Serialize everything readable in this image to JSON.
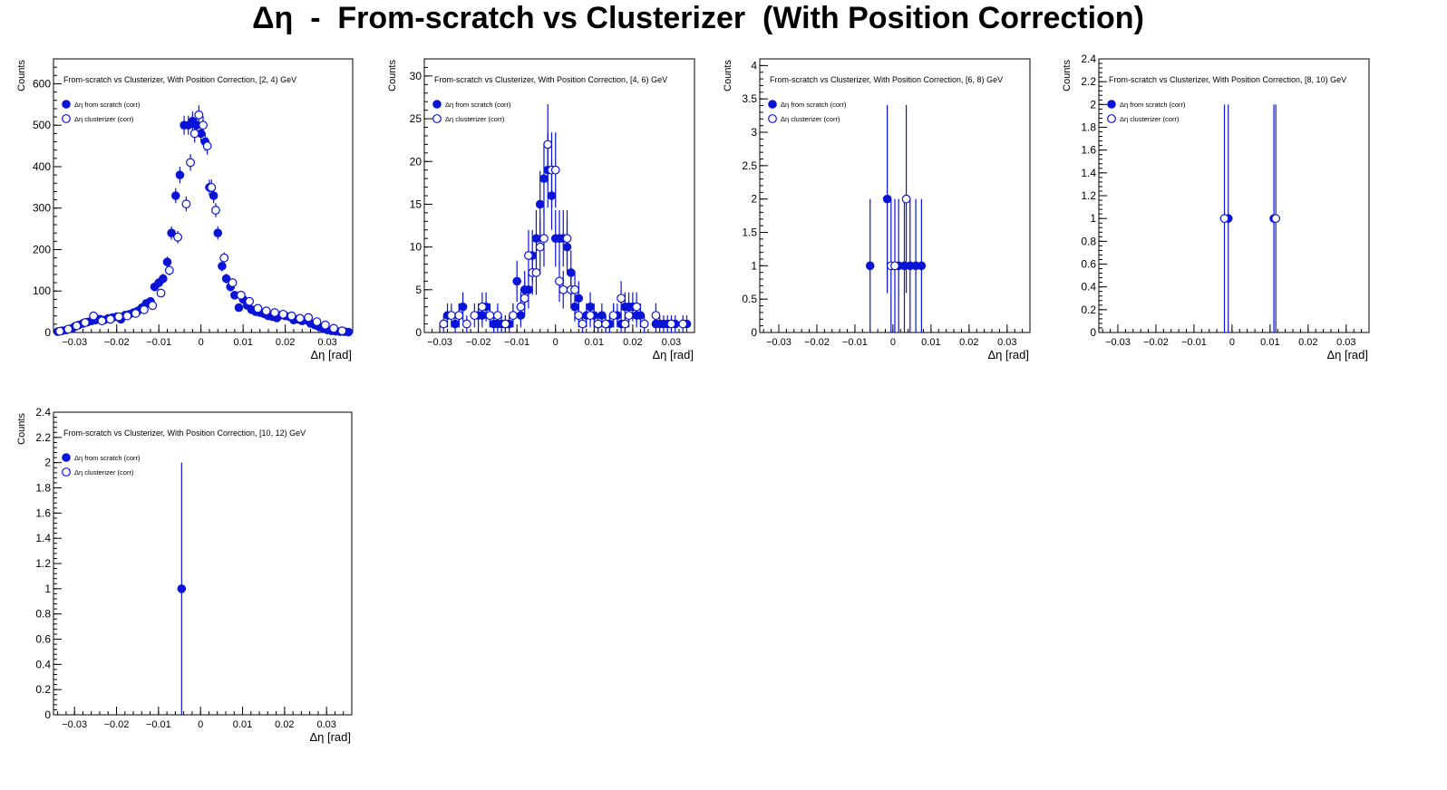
{
  "figure": {
    "title": "Δη  -  From-scratch vs Clusterizer  (With Position Correction)"
  },
  "colors": {
    "marker": "#0a14d6",
    "axis": "#000000",
    "background": "#ffffff"
  },
  "chart_data": [
    {
      "type": "scatter",
      "title": "From-scratch vs Clusterizer, With Position Correction, [2, 4) GeV",
      "xlabel": "Δη  [rad]",
      "ylabel": "Counts",
      "xlim": [
        -0.035,
        0.036
      ],
      "ylim": [
        0,
        660
      ],
      "xticks": [
        -0.03,
        -0.02,
        -0.01,
        0,
        0.01,
        0.02,
        0.03
      ],
      "xtick_labels": [
        "−0.03",
        "−0.02",
        "−0.01",
        "0",
        "0.01",
        "0.02",
        "0.03"
      ],
      "yticks": [
        0,
        100,
        200,
        300,
        400,
        500,
        600
      ],
      "ytick_labels": [
        "0",
        "100",
        "200",
        "300",
        "400",
        "500",
        "600"
      ],
      "legend": "top-left",
      "series": [
        {
          "name": "Δη  from scratch (corr)",
          "marker": "filled",
          "x": [
            -0.034,
            -0.033,
            -0.032,
            -0.031,
            -0.03,
            -0.029,
            -0.028,
            -0.027,
            -0.026,
            -0.025,
            -0.024,
            -0.023,
            -0.022,
            -0.021,
            -0.02,
            -0.019,
            -0.018,
            -0.017,
            -0.016,
            -0.015,
            -0.014,
            -0.013,
            -0.012,
            -0.011,
            -0.01,
            -0.009,
            -0.008,
            -0.007,
            -0.006,
            -0.005,
            -0.004,
            -0.003,
            -0.002,
            -0.001,
            0.0,
            0.001,
            0.002,
            0.003,
            0.004,
            0.005,
            0.006,
            0.007,
            0.008,
            0.009,
            0.01,
            0.011,
            0.012,
            0.013,
            0.014,
            0.015,
            0.016,
            0.017,
            0.018,
            0.019,
            0.02,
            0.021,
            0.022,
            0.023,
            0.024,
            0.025,
            0.026,
            0.027,
            0.028,
            0.029,
            0.03,
            0.031,
            0.032,
            0.033,
            0.034,
            0.035
          ],
          "y": [
            2,
            4,
            6,
            9,
            14,
            18,
            22,
            25,
            28,
            30,
            32,
            30,
            34,
            36,
            38,
            32,
            42,
            44,
            48,
            52,
            60,
            70,
            75,
            110,
            120,
            130,
            170,
            240,
            330,
            380,
            500,
            500,
            510,
            500,
            480,
            460,
            350,
            330,
            240,
            160,
            130,
            110,
            90,
            60,
            80,
            65,
            55,
            50,
            48,
            45,
            40,
            38,
            35,
            42,
            40,
            38,
            30,
            32,
            28,
            30,
            22,
            18,
            14,
            10,
            6,
            4,
            3,
            2,
            2,
            1
          ],
          "yerr": [
            2,
            2,
            3,
            3,
            4,
            4,
            5,
            5,
            6,
            6,
            6,
            6,
            6,
            6,
            7,
            6,
            7,
            7,
            7,
            8,
            8,
            9,
            9,
            11,
            11,
            12,
            13,
            16,
            18,
            20,
            23,
            23,
            23,
            23,
            22,
            22,
            19,
            18,
            16,
            13,
            12,
            11,
            10,
            8,
            9,
            8,
            8,
            7,
            7,
            7,
            7,
            6,
            6,
            7,
            7,
            6,
            6,
            6,
            6,
            6,
            5,
            5,
            4,
            4,
            3,
            2,
            2,
            2,
            2,
            1
          ]
        },
        {
          "name": "Δη  clusterizer (corr)",
          "marker": "open",
          "x": [
            -0.0335,
            -0.0315,
            -0.0295,
            -0.0275,
            -0.0255,
            -0.0235,
            -0.0215,
            -0.0195,
            -0.0175,
            -0.0155,
            -0.0135,
            -0.0115,
            -0.0095,
            -0.0075,
            -0.0055,
            -0.0035,
            -0.0025,
            -0.0015,
            -0.0005,
            0.0005,
            0.0015,
            0.0025,
            0.0035,
            0.0055,
            0.0075,
            0.0095,
            0.0115,
            0.0135,
            0.0155,
            0.0175,
            0.0195,
            0.0215,
            0.0235,
            0.0255,
            0.0275,
            0.0295,
            0.0315,
            0.0335
          ],
          "y": [
            3,
            8,
            16,
            24,
            40,
            28,
            32,
            38,
            40,
            46,
            55,
            65,
            95,
            150,
            230,
            310,
            410,
            480,
            525,
            500,
            450,
            350,
            295,
            180,
            120,
            90,
            75,
            58,
            52,
            48,
            44,
            40,
            34,
            36,
            26,
            18,
            10,
            4
          ],
          "yerr": [
            2,
            3,
            4,
            5,
            6,
            5,
            6,
            6,
            6,
            7,
            7,
            8,
            10,
            12,
            15,
            18,
            20,
            22,
            23,
            22,
            21,
            19,
            17,
            13,
            11,
            9,
            9,
            8,
            7,
            7,
            7,
            6,
            6,
            6,
            5,
            4,
            3,
            2
          ]
        }
      ]
    },
    {
      "type": "scatter",
      "title": "From-scratch vs Clusterizer, With Position Correction, [4, 6) GeV",
      "xlabel": "Δη  [rad]",
      "ylabel": "Counts",
      "xlim": [
        -0.034,
        0.036
      ],
      "ylim": [
        0,
        32
      ],
      "xticks": [
        -0.03,
        -0.02,
        -0.01,
        0,
        0.01,
        0.02,
        0.03
      ],
      "xtick_labels": [
        "−0.03",
        "−0.02",
        "−0.01",
        "0",
        "0.01",
        "0.02",
        "0.03"
      ],
      "yticks": [
        0,
        5,
        10,
        15,
        20,
        25,
        30
      ],
      "ytick_labels": [
        "0",
        "5",
        "10",
        "15",
        "20",
        "25",
        "30"
      ],
      "legend": "top-left",
      "series": [
        {
          "name": "Δη  from scratch (corr)",
          "marker": "filled",
          "x": [
            -0.028,
            -0.026,
            -0.025,
            -0.024,
            -0.02,
            -0.019,
            -0.018,
            -0.017,
            -0.016,
            -0.015,
            -0.014,
            -0.013,
            -0.012,
            -0.011,
            -0.01,
            -0.009,
            -0.008,
            -0.007,
            -0.006,
            -0.005,
            -0.004,
            -0.003,
            -0.002,
            -0.001,
            0.0,
            0.001,
            0.002,
            0.003,
            0.004,
            0.005,
            0.006,
            0.008,
            0.009,
            0.01,
            0.011,
            0.012,
            0.013,
            0.014,
            0.015,
            0.016,
            0.017,
            0.018,
            0.019,
            0.02,
            0.021,
            0.022,
            0.026,
            0.027,
            0.028,
            0.029,
            0.031,
            0.034
          ],
          "y": [
            2,
            1,
            2,
            3,
            2,
            2,
            3,
            2,
            1,
            1,
            1,
            1,
            1,
            2,
            6,
            2,
            5,
            5,
            9,
            11,
            15,
            18,
            19,
            16,
            11,
            11,
            11,
            10,
            7,
            3,
            4,
            2,
            3,
            2,
            1,
            2,
            1,
            1,
            2,
            2,
            1,
            3,
            3,
            3,
            2,
            2,
            1,
            1,
            1,
            1,
            1,
            1
          ],
          "yerr": [
            1.4,
            1,
            1.4,
            1.7,
            1.4,
            1.4,
            1.7,
            1.4,
            1,
            1,
            1,
            1,
            1,
            1.4,
            2.4,
            1.4,
            2.2,
            2.2,
            3,
            3.3,
            3.9,
            4.2,
            4.4,
            4,
            3.3,
            3.3,
            3.3,
            3.2,
            2.6,
            1.7,
            2,
            1.4,
            1.7,
            1.4,
            1,
            1.4,
            1,
            1,
            1.4,
            1.4,
            1,
            1.7,
            1.7,
            1.7,
            1.4,
            1.4,
            1,
            1,
            1,
            1,
            1,
            1
          ]
        },
        {
          "name": "Δη  clusterizer (corr)",
          "marker": "open",
          "x": [
            -0.029,
            -0.027,
            -0.025,
            -0.023,
            -0.021,
            -0.019,
            -0.017,
            -0.015,
            -0.013,
            -0.011,
            -0.009,
            -0.008,
            -0.007,
            -0.006,
            -0.005,
            -0.004,
            -0.003,
            -0.002,
            -0.001,
            0.0,
            0.001,
            0.002,
            0.003,
            0.004,
            0.005,
            0.006,
            0.007,
            0.009,
            0.011,
            0.013,
            0.015,
            0.017,
            0.018,
            0.019,
            0.021,
            0.023,
            0.026,
            0.03,
            0.033
          ],
          "y": [
            1,
            2,
            2,
            1,
            2,
            3,
            2,
            2,
            1,
            2,
            3,
            4,
            9,
            7,
            7,
            10,
            11,
            22,
            19,
            19,
            6,
            5,
            11,
            5,
            5,
            2,
            1,
            2,
            1,
            1,
            2,
            4,
            1,
            2,
            3,
            1,
            2,
            1,
            1
          ],
          "yerr": [
            1,
            1.4,
            1.4,
            1,
            1.4,
            1.7,
            1.4,
            1.4,
            1,
            1.4,
            1.7,
            2,
            3,
            2.6,
            2.6,
            3.2,
            3.3,
            4.7,
            4.4,
            4.4,
            2.4,
            2.2,
            3.3,
            2.2,
            2.2,
            1.4,
            1,
            1.4,
            1,
            1,
            1.4,
            2,
            1,
            1.4,
            1.7,
            1,
            1.4,
            1,
            1
          ]
        }
      ]
    },
    {
      "type": "scatter",
      "title": "From-scratch vs Clusterizer, With Position Correction, [6, 8) GeV",
      "xlabel": "Δη  [rad]",
      "ylabel": "Counts",
      "xlim": [
        -0.035,
        0.036
      ],
      "ylim": [
        0,
        4.1
      ],
      "xticks": [
        -0.03,
        -0.02,
        -0.01,
        0,
        0.01,
        0.02,
        0.03
      ],
      "xtick_labels": [
        "−0.03",
        "−0.02",
        "−0.01",
        "0",
        "0.01",
        "0.02",
        "0.03"
      ],
      "yticks": [
        0,
        0.5,
        1,
        1.5,
        2,
        2.5,
        3,
        3.5,
        4
      ],
      "ytick_labels": [
        "0",
        "0.5",
        "1",
        "1.5",
        "2",
        "2.5",
        "3",
        "3.5",
        "4"
      ],
      "legend": "top-left",
      "series": [
        {
          "name": "Δη  from scratch (corr)",
          "marker": "filled",
          "x": [
            -0.006,
            -0.0015,
            0.0015,
            0.003,
            0.0045,
            0.006,
            0.0075
          ],
          "y": [
            1,
            2,
            1,
            1,
            1,
            1,
            1
          ],
          "yerr": [
            1,
            1.41,
            1,
            1,
            1,
            1,
            1
          ]
        },
        {
          "name": "Δη  clusterizer (corr)",
          "marker": "open",
          "x": [
            -0.0005,
            0.0005,
            0.0035
          ],
          "y": [
            1,
            1,
            2
          ],
          "yerr": [
            1,
            1,
            1.41
          ]
        }
      ]
    },
    {
      "type": "scatter",
      "title": "From-scratch vs Clusterizer, With Position Correction, [8, 10) GeV",
      "xlabel": "Δη  [rad]",
      "ylabel": "Counts",
      "xlim": [
        -0.035,
        0.036
      ],
      "ylim": [
        0,
        2.4
      ],
      "xticks": [
        -0.03,
        -0.02,
        -0.01,
        0,
        0.01,
        0.02,
        0.03
      ],
      "xtick_labels": [
        "−0.03",
        "−0.02",
        "−0.01",
        "0",
        "0.01",
        "0.02",
        "0.03"
      ],
      "yticks": [
        0,
        0.2,
        0.4,
        0.6,
        0.8,
        1,
        1.2,
        1.4,
        1.6,
        1.8,
        2,
        2.2,
        2.4
      ],
      "ytick_labels": [
        "0",
        "0.2",
        "0.4",
        "0.6",
        "0.8",
        "1",
        "1.2",
        "1.4",
        "1.6",
        "1.8",
        "2",
        "2.2",
        "2.4"
      ],
      "legend": "top-left",
      "series": [
        {
          "name": "Δη  from scratch (corr)",
          "marker": "filled",
          "x": [
            -0.001,
            0.011
          ],
          "y": [
            1,
            1
          ],
          "yerr": [
            1,
            1
          ]
        },
        {
          "name": "Δη  clusterizer (corr)",
          "marker": "open",
          "x": [
            -0.002,
            0.0115
          ],
          "y": [
            1,
            1
          ],
          "yerr": [
            1,
            1
          ]
        }
      ]
    },
    {
      "type": "scatter",
      "title": "From-scratch vs Clusterizer, With Position Correction, [10, 12) GeV",
      "xlabel": "Δη  [rad]",
      "ylabel": "Counts",
      "xlim": [
        -0.035,
        0.036
      ],
      "ylim": [
        0,
        2.4
      ],
      "xticks": [
        -0.03,
        -0.02,
        -0.01,
        0,
        0.01,
        0.02,
        0.03
      ],
      "xtick_labels": [
        "−0.03",
        "−0.02",
        "−0.01",
        "0",
        "0.01",
        "0.02",
        "0.03"
      ],
      "yticks": [
        0,
        0.2,
        0.4,
        0.6,
        0.8,
        1,
        1.2,
        1.4,
        1.6,
        1.8,
        2,
        2.2,
        2.4
      ],
      "ytick_labels": [
        "0",
        "0.2",
        "0.4",
        "0.6",
        "0.8",
        "1",
        "1.2",
        "1.4",
        "1.6",
        "1.8",
        "2",
        "2.2",
        "2.4"
      ],
      "legend": "top-left",
      "series": [
        {
          "name": "Δη  from scratch (corr)",
          "marker": "filled",
          "x": [
            -0.0045
          ],
          "y": [
            1
          ],
          "yerr": [
            1
          ]
        },
        {
          "name": "Δη  clusterizer (corr)",
          "marker": "open",
          "x": [],
          "y": [],
          "yerr": []
        }
      ]
    }
  ]
}
